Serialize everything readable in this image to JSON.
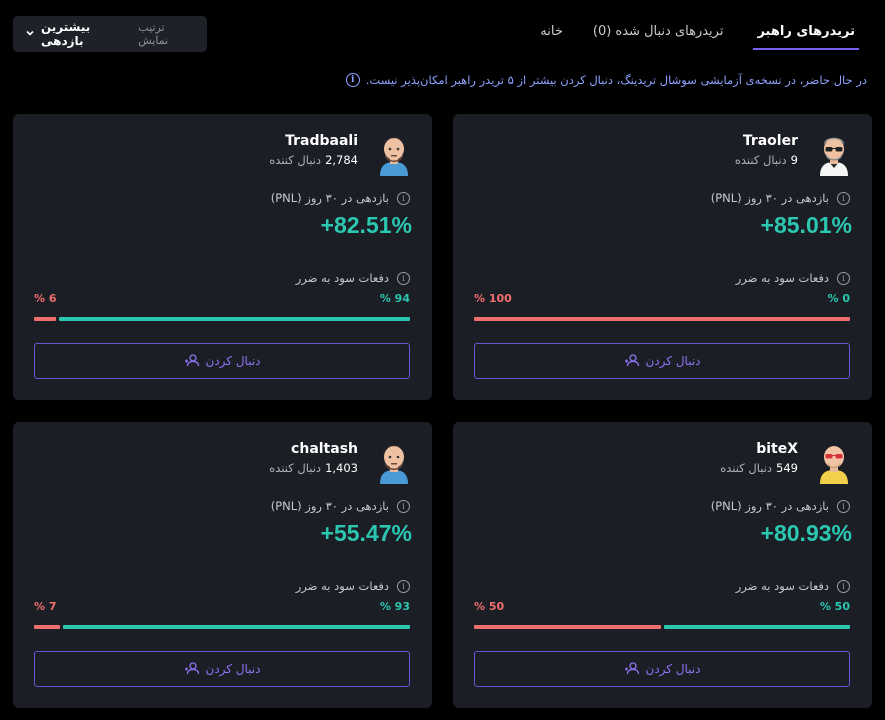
{
  "tabs": [
    {
      "label": "خانه",
      "active": false
    },
    {
      "label": "تریدرهای دنبال شده (0)",
      "active": false
    },
    {
      "label": "تریدرهای راهبر",
      "active": true
    }
  ],
  "sort": {
    "label": "ترتیب نمایش",
    "value": "بیشترین بازدهی"
  },
  "notice": "در حال حاضر، در نسخه‌ی آزمایشی سوشال تریدینگ، دنبال کردن بیشتر از ۵ تریدر راهبر امکان‌پذیر نیست.",
  "labels": {
    "followers_suffix": "دنبال کننده",
    "pnl": "بازدهی در ۳۰ روز (PNL)",
    "win_loss": "دفعات سود به ضرر",
    "follow": "دنبال کردن"
  },
  "accent": "#7b5cf0",
  "win_color": "#2bc7b1",
  "loss_color": "#ef6f6f",
  "traders": [
    {
      "name": "Traoler",
      "followers": "9",
      "pnl": "+85.01%",
      "win_pct": "% 0",
      "loss_pct": "% 100",
      "win": 0,
      "loss": 100,
      "avatar": "gray-hair-sunglasses-avatar"
    },
    {
      "name": "Tradbaali",
      "followers": "2,784",
      "pnl": "+82.51%",
      "win_pct": "% 94",
      "loss_pct": "% 6",
      "win": 94,
      "loss": 6,
      "avatar": "brown-hair-beard-avatar"
    },
    {
      "name": "biteX",
      "followers": "549",
      "pnl": "+80.93%",
      "win_pct": "% 50",
      "loss_pct": "% 50",
      "win": 50,
      "loss": 50,
      "avatar": "bald-red-sunglasses-avatar"
    },
    {
      "name": "chaltash",
      "followers": "1,403",
      "pnl": "+55.47%",
      "win_pct": "% 93",
      "loss_pct": "% 7",
      "win": 93,
      "loss": 7,
      "avatar": "brown-hair-beard-avatar"
    }
  ]
}
